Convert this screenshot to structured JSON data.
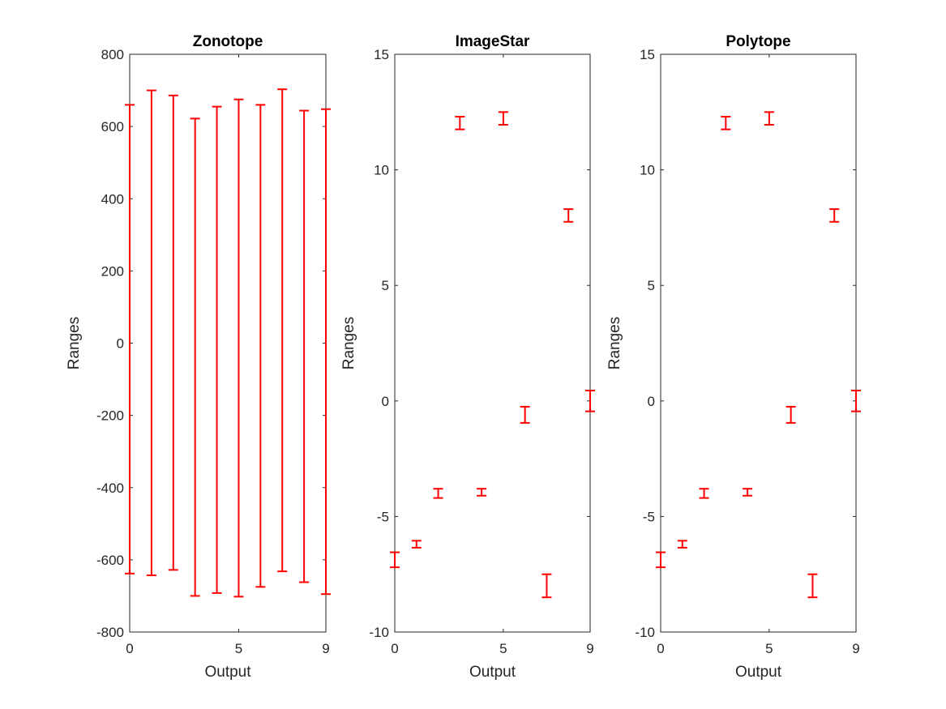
{
  "chart_data": [
    {
      "type": "errorbar",
      "title": "Zonotope",
      "xlabel": "Output",
      "ylabel": "Ranges",
      "xlim": [
        0,
        9
      ],
      "ylim": [
        -800,
        800
      ],
      "xticks": [
        "0",
        "5",
        "9"
      ],
      "yticks": [
        "-800",
        "-600",
        "-400",
        "-200",
        "0",
        "200",
        "400",
        "600",
        "800"
      ],
      "x": [
        0,
        1,
        2,
        3,
        4,
        5,
        6,
        7,
        8,
        9
      ],
      "lower": [
        -638,
        -643,
        -628,
        -700,
        -692,
        -702,
        -675,
        -632,
        -662,
        -695
      ],
      "upper": [
        660,
        700,
        686,
        622,
        655,
        675,
        660,
        703,
        644,
        648
      ],
      "color": "#ff0000"
    },
    {
      "type": "errorbar",
      "title": "ImageStar",
      "xlabel": "Output",
      "ylabel": "Ranges",
      "xlim": [
        0,
        9
      ],
      "ylim": [
        -10,
        15
      ],
      "xticks": [
        "0",
        "5",
        "9"
      ],
      "yticks": [
        "-10",
        "-5",
        "0",
        "5",
        "10",
        "15"
      ],
      "x": [
        0,
        1,
        2,
        3,
        4,
        5,
        6,
        7,
        8,
        9
      ],
      "lower": [
        -7.2,
        -6.35,
        -4.2,
        11.75,
        -4.1,
        11.95,
        -0.95,
        -8.5,
        7.75,
        -0.45
      ],
      "upper": [
        -6.55,
        -6.05,
        -3.8,
        12.3,
        -3.8,
        12.5,
        -0.25,
        -7.5,
        8.3,
        0.45
      ],
      "color": "#ff0000"
    },
    {
      "type": "errorbar",
      "title": "Polytope",
      "xlabel": "Output",
      "ylabel": "Ranges",
      "xlim": [
        0,
        9
      ],
      "ylim": [
        -10,
        15
      ],
      "xticks": [
        "0",
        "5",
        "9"
      ],
      "yticks": [
        "-10",
        "-5",
        "0",
        "5",
        "10",
        "15"
      ],
      "x": [
        0,
        1,
        2,
        3,
        4,
        5,
        6,
        7,
        8,
        9
      ],
      "lower": [
        -7.2,
        -6.35,
        -4.2,
        11.75,
        -4.1,
        11.95,
        -0.95,
        -8.5,
        7.75,
        -0.45
      ],
      "upper": [
        -6.55,
        -6.05,
        -3.8,
        12.3,
        -3.8,
        12.5,
        -0.25,
        -7.5,
        8.3,
        0.45
      ],
      "color": "#ff0000"
    }
  ]
}
